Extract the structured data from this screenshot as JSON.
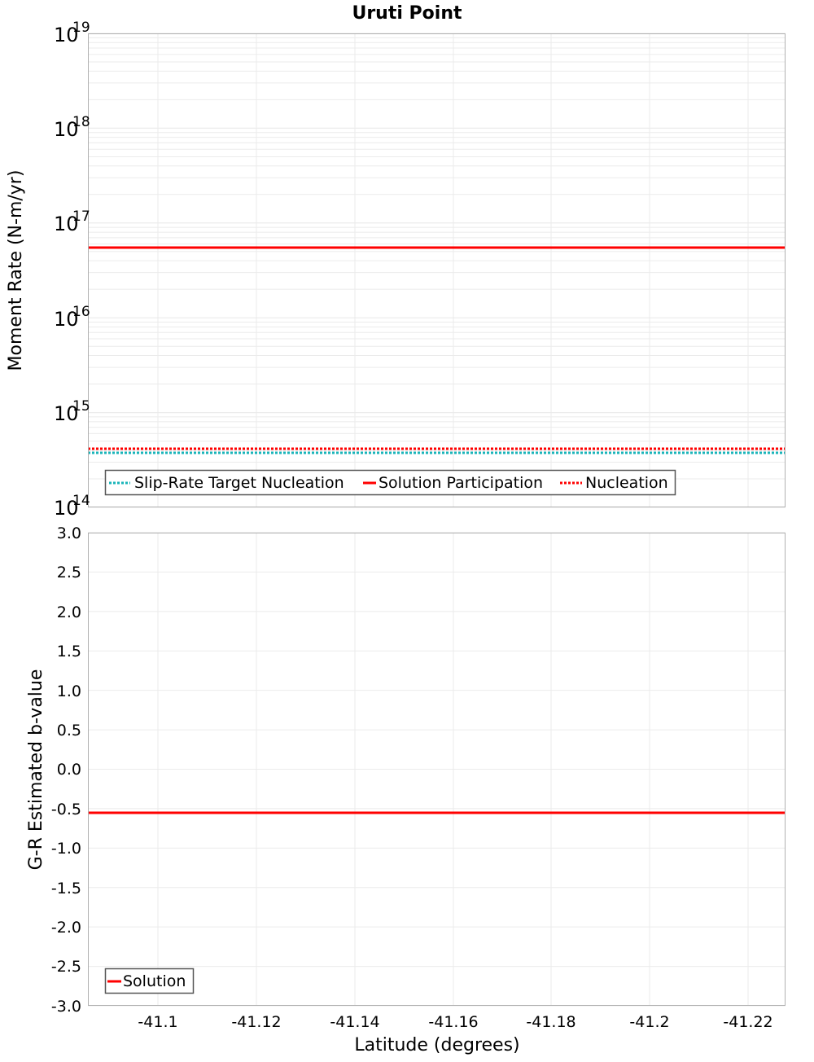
{
  "title": "Uruti Point",
  "colors": {
    "solution": "#ff0000",
    "nucleation": "#ff0000",
    "target": "#19b4b9",
    "grid": "#ebebeb",
    "axis": "#b0b0b0",
    "legend_border": "#555555"
  },
  "chart_data": [
    {
      "type": "line",
      "title": "Uruti Point",
      "xlabel": "Latitude (degrees)",
      "ylabel": "Moment Rate (N-m/yr)",
      "yscale": "log",
      "ylim": [
        100000000000000.0,
        1e+19
      ],
      "xlim": [
        -41.0858,
        -41.2277
      ],
      "x_reversed": true,
      "grid": true,
      "y_tick_labels": [
        {
          "base": "10",
          "exp": "14",
          "value": 100000000000000.0
        },
        {
          "base": "10",
          "exp": "15",
          "value": 1000000000000000.0
        },
        {
          "base": "10",
          "exp": "16",
          "value": 1e+16
        },
        {
          "base": "10",
          "exp": "17",
          "value": 1e+17
        },
        {
          "base": "10",
          "exp": "18",
          "value": 1e+18
        },
        {
          "base": "10",
          "exp": "19",
          "value": 1e+19
        }
      ],
      "x": [
        -41.0858,
        -41.2277
      ],
      "series": [
        {
          "name": "Slip-Rate Target Nucleation",
          "style": "dotted",
          "color": "#19b4b9",
          "values": [
            380000000000000.0,
            380000000000000.0
          ]
        },
        {
          "name": "Solution Participation",
          "style": "solid",
          "color": "#ff0000",
          "values": [
            5.5e+16,
            5.5e+16
          ]
        },
        {
          "name": "Nucleation",
          "style": "dotted",
          "color": "#ff0000",
          "values": [
            420000000000000.0,
            420000000000000.0
          ]
        }
      ],
      "legend": {
        "position": "lower-left",
        "entries": [
          "Slip-Rate Target Nucleation",
          "Solution Participation",
          "Nucleation"
        ]
      }
    },
    {
      "type": "line",
      "xlabel": "Latitude (degrees)",
      "ylabel": "G-R Estimated b-value",
      "ylim": [
        -3.0,
        3.0
      ],
      "xlim": [
        -41.0858,
        -41.2277
      ],
      "x_reversed": true,
      "grid": true,
      "y_ticks": [
        "3.0",
        "2.5",
        "2.0",
        "1.5",
        "1.0",
        "0.5",
        "0.0",
        "-0.5",
        "-1.0",
        "-1.5",
        "-2.0",
        "-2.5",
        "-3.0"
      ],
      "x_ticks": [
        "-41.1",
        "-41.12",
        "-41.14",
        "-41.16",
        "-41.18",
        "-41.2",
        "-41.22"
      ],
      "x": [
        -41.0858,
        -41.2277
      ],
      "series": [
        {
          "name": "Solution",
          "style": "solid",
          "color": "#ff0000",
          "values": [
            -0.55,
            -0.55
          ]
        }
      ],
      "legend": {
        "position": "lower-left",
        "entries": [
          "Solution"
        ]
      }
    }
  ],
  "top_panel": {
    "ylabel": "Moment Rate (N-m/yr)",
    "legend": {
      "target": "Slip-Rate Target Nucleation",
      "participation": "Solution Participation",
      "nucleation": "Nucleation"
    }
  },
  "bottom_panel": {
    "ylabel": "G-R Estimated b-value",
    "xlabel": "Latitude (degrees)",
    "legend": {
      "solution": "Solution"
    }
  }
}
